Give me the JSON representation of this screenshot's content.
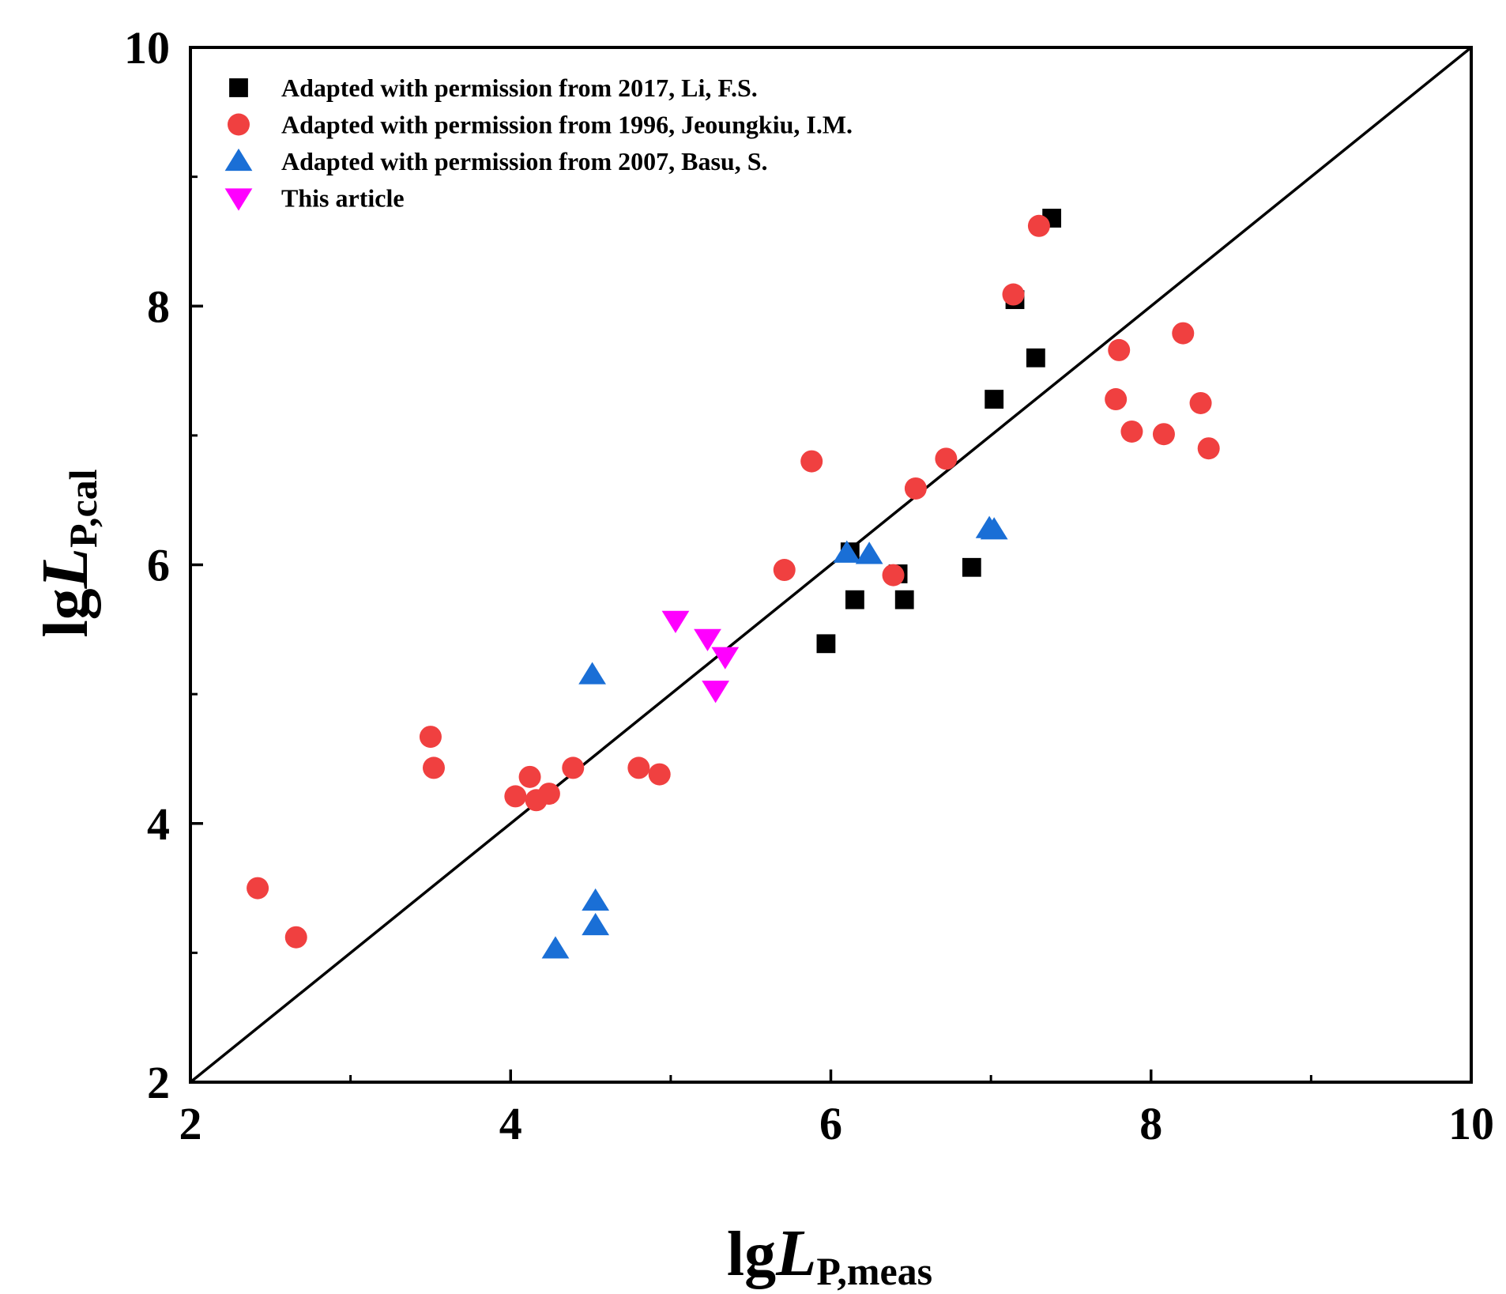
{
  "chart_data": {
    "type": "scatter",
    "title": "",
    "xlabel": {
      "prefix": "lg",
      "italic": "L",
      "subscript": "P,meas"
    },
    "ylabel": {
      "prefix": "lg",
      "italic": "L",
      "subscript": "P,cal"
    },
    "xlim": [
      2,
      10
    ],
    "ylim": [
      2,
      10
    ],
    "x_major_ticks": [
      2,
      4,
      6,
      8,
      10
    ],
    "x_minor_ticks": [
      3,
      5,
      7,
      9
    ],
    "y_major_ticks": [
      2,
      4,
      6,
      8,
      10
    ],
    "y_minor_ticks": [
      3,
      5,
      7,
      9
    ],
    "x_tick_labels": [
      "2",
      "4",
      "6",
      "8",
      "10"
    ],
    "y_tick_labels": [
      "2",
      "4",
      "6",
      "8",
      "10"
    ],
    "grid": false,
    "legend_position": "top-left",
    "reference_line": {
      "name": "y = x",
      "x": [
        2,
        10
      ],
      "y": [
        2,
        10
      ],
      "color": "#000000"
    },
    "series": [
      {
        "name": "Adapted with permission from  2017, Li, F.S.",
        "marker": "square",
        "color": "#000000",
        "points": [
          [
            7.38,
            8.68
          ],
          [
            7.15,
            8.05
          ],
          [
            7.28,
            7.6
          ],
          [
            7.02,
            7.28
          ],
          [
            6.88,
            5.98
          ],
          [
            6.12,
            6.1
          ],
          [
            6.15,
            5.73
          ],
          [
            6.42,
            5.93
          ],
          [
            6.46,
            5.73
          ],
          [
            5.97,
            5.39
          ]
        ]
      },
      {
        "name": "Adapted with permission from  1996, Jeoungkiu, I.M.",
        "marker": "circle",
        "color": "#f04040",
        "points": [
          [
            7.3,
            8.62
          ],
          [
            7.14,
            8.09
          ],
          [
            7.8,
            7.66
          ],
          [
            8.2,
            7.79
          ],
          [
            7.78,
            7.28
          ],
          [
            7.88,
            7.03
          ],
          [
            8.08,
            7.01
          ],
          [
            8.31,
            7.25
          ],
          [
            8.36,
            6.9
          ],
          [
            6.72,
            6.82
          ],
          [
            5.88,
            6.8
          ],
          [
            6.53,
            6.59
          ],
          [
            5.71,
            5.96
          ],
          [
            6.39,
            5.92
          ],
          [
            3.5,
            4.67
          ],
          [
            3.52,
            4.43
          ],
          [
            4.39,
            4.43
          ],
          [
            4.8,
            4.43
          ],
          [
            4.93,
            4.38
          ],
          [
            4.12,
            4.36
          ],
          [
            4.03,
            4.21
          ],
          [
            4.16,
            4.18
          ],
          [
            4.24,
            4.23
          ],
          [
            2.42,
            3.5
          ],
          [
            2.66,
            3.12
          ]
        ]
      },
      {
        "name": "Adapted with permission from  2007, Basu, S.",
        "marker": "triangle-up",
        "color": "#1a6fd6",
        "points": [
          [
            6.99,
            6.28
          ],
          [
            7.02,
            6.27
          ],
          [
            6.1,
            6.09
          ],
          [
            6.24,
            6.08
          ],
          [
            4.51,
            5.15
          ],
          [
            4.53,
            3.4
          ],
          [
            4.53,
            3.21
          ],
          [
            4.28,
            3.03
          ]
        ]
      },
      {
        "name": "This article",
        "marker": "triangle-down",
        "color": "#ff00ff",
        "points": [
          [
            5.03,
            5.57
          ],
          [
            5.23,
            5.43
          ],
          [
            5.34,
            5.29
          ],
          [
            5.28,
            5.03
          ]
        ]
      }
    ]
  }
}
